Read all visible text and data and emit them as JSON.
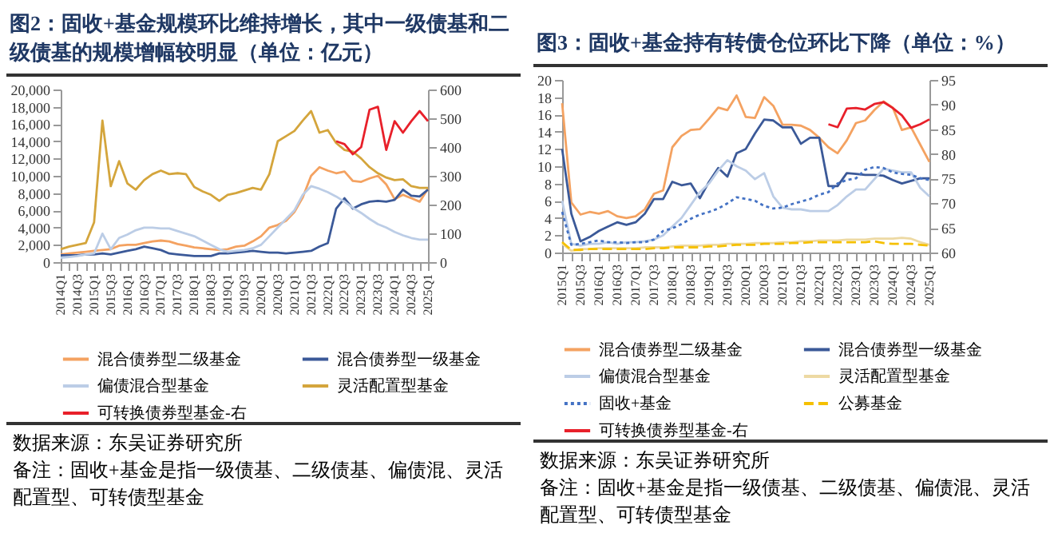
{
  "chart_data": [
    {
      "type": "line",
      "title": "图2：固收+基金规模环比维持增长，其中一级债基和二级债基的规模增幅较明显（单位：亿元）",
      "categories": [
        "2014Q1",
        null,
        "2014Q3",
        null,
        "2015Q1",
        null,
        "2015Q3",
        null,
        "2016Q1",
        null,
        "2016Q3",
        null,
        "2017Q1",
        null,
        "2017Q3",
        null,
        "2018Q1",
        null,
        "2018Q3",
        null,
        "2019Q1",
        null,
        "2019Q3",
        null,
        "2020Q1",
        null,
        "2020Q3",
        null,
        "2021Q1",
        null,
        "2021Q3",
        null,
        "2022Q1",
        null,
        "2022Q3",
        null,
        "2023Q1",
        null,
        "2023Q3",
        null,
        "2024Q1",
        null,
        "2024Q3",
        null,
        "2025Q1"
      ],
      "series": [
        {
          "name": "混合债券型二级基金",
          "color": "#f4a261",
          "values": [
            900,
            1000,
            1100,
            1200,
            1300,
            1400,
            1500,
            1900,
            2000,
            2000,
            2200,
            2400,
            2500,
            2400,
            2100,
            1900,
            1700,
            1600,
            1500,
            1400,
            1500,
            1800,
            1900,
            2400,
            3000,
            4000,
            4300,
            4800,
            5800,
            7500,
            10000,
            11000,
            10600,
            10300,
            10500,
            9400,
            9300,
            9700,
            10000,
            9000,
            7300,
            7800,
            7400,
            7000,
            8500
          ]
        },
        {
          "name": "混合债券型一级基金",
          "color": "#3b5998",
          "values": [
            800,
            800,
            800,
            900,
            900,
            1000,
            900,
            1100,
            1300,
            1500,
            1800,
            1600,
            1400,
            1000,
            900,
            800,
            700,
            700,
            700,
            1000,
            1000,
            1100,
            1200,
            1300,
            1200,
            1100,
            1100,
            1000,
            1100,
            1200,
            1300,
            1800,
            2200,
            6200,
            7400,
            6200,
            6700,
            7000,
            7100,
            7000,
            7200,
            8400,
            7700,
            7600,
            8400
          ]
        },
        {
          "name": "偏债混合型基金",
          "color": "#bccde6",
          "values": [
            500,
            600,
            700,
            900,
            1000,
            3300,
            1500,
            2800,
            3200,
            3700,
            4000,
            4000,
            3900,
            3900,
            3600,
            3300,
            3000,
            2500,
            2000,
            1500,
            1200,
            1300,
            1400,
            1600,
            2000,
            3000,
            4000,
            5000,
            6000,
            7800,
            8800,
            8500,
            8100,
            7600,
            7000,
            6300,
            5700,
            5000,
            4400,
            4000,
            3500,
            3100,
            2800,
            2600,
            2600
          ]
        },
        {
          "name": "灵活配置型基金",
          "color": "#d4a53c",
          "values": [
            1500,
            1800,
            2000,
            2200,
            4600,
            16400,
            8800,
            11700,
            9100,
            8400,
            9500,
            10200,
            10600,
            10200,
            10300,
            10200,
            8700,
            8200,
            7800,
            7100,
            7800,
            8000,
            8300,
            8600,
            8400,
            10200,
            14000,
            14600,
            15200,
            16400,
            17500,
            15000,
            15300,
            13800,
            13000,
            12800,
            12000,
            11000,
            10300,
            9800,
            9500,
            9600,
            8800,
            8600,
            8600
          ]
        },
        {
          "name": "可转换债券型基金-右",
          "color": "#e8202a",
          "axis": "y2",
          "values": [
            null,
            null,
            null,
            null,
            null,
            null,
            null,
            null,
            null,
            null,
            null,
            null,
            null,
            null,
            null,
            null,
            null,
            null,
            null,
            null,
            null,
            null,
            null,
            null,
            null,
            null,
            null,
            null,
            null,
            null,
            null,
            null,
            null,
            420,
            410,
            375,
            400,
            530,
            540,
            390,
            490,
            450,
            490,
            525,
            490
          ]
        }
      ],
      "ylim": [
        0,
        20000
      ],
      "yticks": [
        0,
        {
          "value": 2000,
          "label": "2,000"
        },
        {
          "value": 4000,
          "label": "4,000"
        },
        {
          "value": 6000,
          "label": "6,000"
        },
        {
          "value": 8000,
          "label": "8,000"
        },
        {
          "value": 10000,
          "label": "10,000"
        },
        {
          "value": 12000,
          "label": "12,000"
        },
        {
          "value": 14000,
          "label": "14,000"
        },
        {
          "value": 16000,
          "label": "16,000"
        },
        {
          "value": 18000,
          "label": "18,000"
        },
        {
          "value": 20000,
          "label": "20,000"
        }
      ],
      "y2lim": [
        0,
        600
      ],
      "y2ticks": [
        0,
        100,
        200,
        300,
        400,
        500,
        600
      ],
      "legend": "bottom",
      "annotations": [
        "数据来源：东吴证券研究所",
        "备注：固收+基金是指一级债基、二级债基、偏债混、灵活配置型、可转债型基金"
      ]
    },
    {
      "type": "line",
      "title": "图3：固收+基金持有转债仓位环比下降（单位：%）",
      "categories": [
        "2015Q1",
        null,
        "2015Q3",
        null,
        "2016Q1",
        null,
        "2016Q3",
        null,
        "2017Q1",
        null,
        "2017Q3",
        null,
        "2018Q1",
        null,
        "2018Q3",
        null,
        "2019Q1",
        null,
        "2019Q3",
        null,
        "2020Q1",
        null,
        "2020Q3",
        null,
        "2021Q1",
        null,
        "2021Q3",
        null,
        "2022Q1",
        null,
        "2022Q3",
        null,
        "2023Q1",
        null,
        "2023Q3",
        null,
        "2024Q1",
        null,
        "2024Q3",
        null,
        "2025Q1"
      ],
      "series": [
        {
          "name": "混合债券型二级基金",
          "color": "#f4a261",
          "values": [
            17.3,
            5.8,
            4.4,
            4.7,
            4.5,
            4.8,
            4.2,
            4.0,
            4.2,
            5.0,
            6.8,
            7.2,
            12.2,
            13.5,
            14.2,
            14.3,
            15.5,
            16.8,
            16.5,
            18.2,
            15.7,
            15.6,
            18.0,
            17.0,
            14.8,
            14.8,
            14.7,
            14.2,
            13.3,
            12.2,
            11.5,
            13.0,
            15.0,
            15.3,
            16.5,
            17.5,
            16.8,
            14.2,
            14.5,
            12.5,
            10.5
          ]
        },
        {
          "name": "混合债券型一级基金",
          "color": "#3b5998",
          "values": [
            12.0,
            4.5,
            1.3,
            1.8,
            2.5,
            3.0,
            3.5,
            3.2,
            3.5,
            4.5,
            6.2,
            6.2,
            8.2,
            7.8,
            8.0,
            6.3,
            8.2,
            9.8,
            8.8,
            11.5,
            12.0,
            13.8,
            15.4,
            15.3,
            14.5,
            14.5,
            12.6,
            13.3,
            13.3,
            7.7,
            7.7,
            9.2,
            9.1,
            9.0,
            9.0,
            8.9,
            8.4,
            8.0,
            8.3,
            8.6,
            8.6
          ]
        },
        {
          "name": "偏债混合型基金",
          "color": "#bccde6",
          "values": [
            6.0,
            1.0,
            0.8,
            1.0,
            1.0,
            1.2,
            1.0,
            1.2,
            1.2,
            1.3,
            1.5,
            2.0,
            3.0,
            4.0,
            5.5,
            7.0,
            8.0,
            9.5,
            10.7,
            10.0,
            9.5,
            8.5,
            9.2,
            6.5,
            5.2,
            5.0,
            5.0,
            4.8,
            4.8,
            4.8,
            5.5,
            6.5,
            7.3,
            7.3,
            8.5,
            9.7,
            9.5,
            9.3,
            9.3,
            7.5,
            6.5
          ]
        },
        {
          "name": "灵活配置型基金",
          "color": "#edd9a3",
          "values": [
            1.0,
            0.2,
            0.4,
            0.4,
            0.5,
            0.5,
            0.5,
            0.5,
            0.5,
            0.6,
            0.6,
            0.6,
            0.7,
            0.8,
            0.8,
            0.8,
            0.9,
            0.9,
            1.0,
            1.0,
            1.0,
            1.1,
            1.1,
            1.1,
            1.2,
            1.2,
            1.3,
            1.3,
            1.4,
            1.4,
            1.4,
            1.5,
            1.5,
            1.5,
            1.6,
            1.6,
            1.6,
            1.7,
            1.6,
            1.2,
            0.9
          ]
        },
        {
          "name": "固收+基金",
          "color": "#4472c4",
          "line_style": "dotted",
          "values": [
            4.7,
            0.9,
            1.0,
            1.2,
            1.4,
            1.2,
            1.2,
            1.1,
            1.2,
            1.2,
            1.5,
            2.5,
            2.8,
            3.3,
            3.9,
            4.4,
            4.7,
            5.1,
            5.7,
            6.4,
            6.2,
            6.0,
            5.4,
            5.1,
            5.2,
            5.6,
            5.9,
            6.2,
            6.7,
            7.0,
            8.0,
            8.4,
            8.6,
            9.6,
            9.9,
            9.8,
            9.3,
            9.1,
            9.0,
            8.6,
            8.4
          ]
        },
        {
          "name": "公募基金",
          "color": "#f5c000",
          "line_style": "dashed",
          "values": [
            1.2,
            0.3,
            0.3,
            0.4,
            0.4,
            0.4,
            0.4,
            0.4,
            0.4,
            0.4,
            0.5,
            0.5,
            0.6,
            0.6,
            0.6,
            0.6,
            0.7,
            0.7,
            0.8,
            0.9,
            0.9,
            0.9,
            1.0,
            1.0,
            1.0,
            1.1,
            1.1,
            1.2,
            1.2,
            1.2,
            1.2,
            1.2,
            1.2,
            1.2,
            1.3,
            1.1,
            1.0,
            1.0,
            1.0,
            0.9,
            0.8
          ]
        },
        {
          "name": "可转换债券型基金-右",
          "color": "#e8202a",
          "axis": "y2",
          "values": [
            null,
            null,
            null,
            null,
            null,
            null,
            null,
            null,
            null,
            null,
            null,
            null,
            null,
            null,
            null,
            null,
            null,
            null,
            null,
            null,
            null,
            null,
            null,
            null,
            null,
            null,
            null,
            null,
            null,
            86.0,
            85.4,
            89.2,
            89.3,
            89.0,
            90.1,
            90.5,
            89.3,
            87.8,
            85.3,
            86.0,
            87.0
          ]
        }
      ],
      "ylim": [
        0,
        20
      ],
      "yticks": [
        0,
        2,
        4,
        6,
        8,
        10,
        12,
        14,
        16,
        18,
        20
      ],
      "y2lim": [
        60,
        95
      ],
      "y2ticks": [
        60,
        65,
        70,
        75,
        80,
        85,
        90,
        95
      ],
      "legend": "bottom",
      "annotations": [
        "数据来源：东吴证券研究所",
        "备注：固收+基金是指一级债基、二级债基、偏债混、灵活配置型、可转债型基金"
      ]
    }
  ]
}
